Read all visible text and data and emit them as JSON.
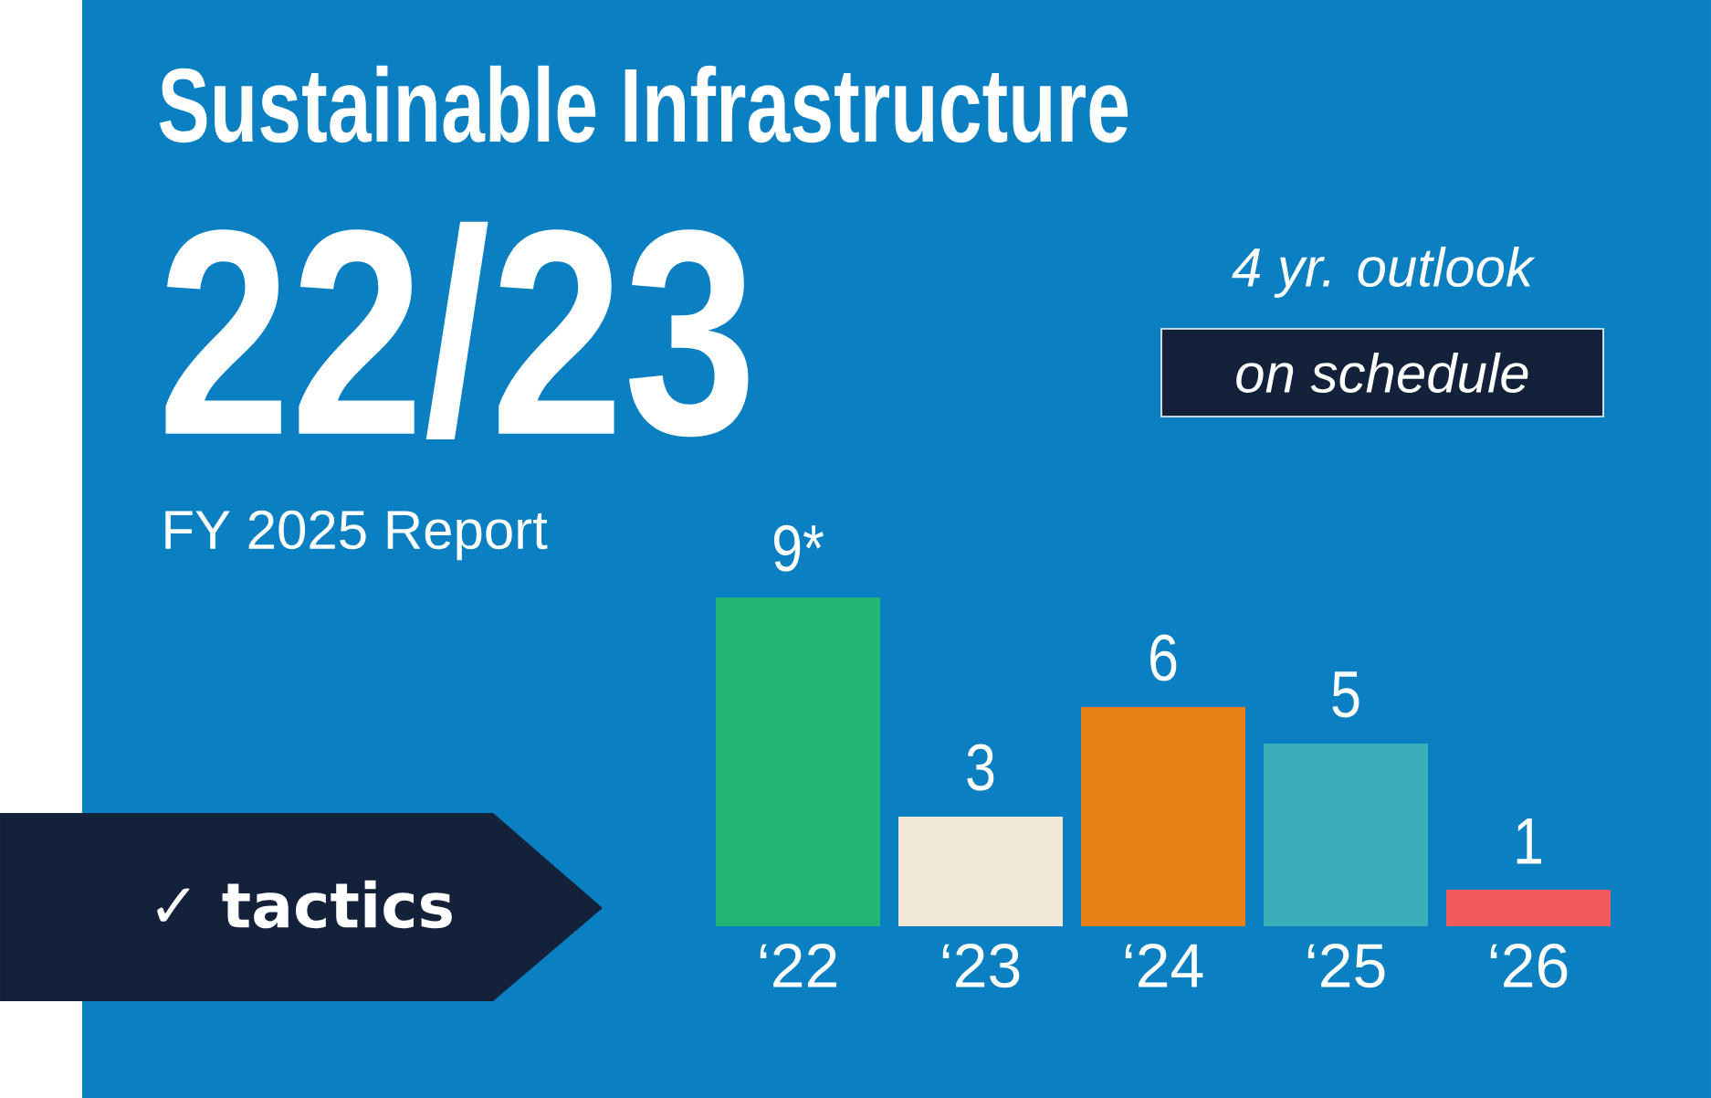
{
  "chart_data": {
    "type": "bar",
    "title": "Sustainable Infrastructure",
    "subtitle": "22/23",
    "categories": [
      "‘22",
      "‘23",
      "‘24",
      "‘25",
      "‘26"
    ],
    "values": [
      9,
      3,
      6,
      5,
      1
    ],
    "value_labels": [
      "9*",
      "3",
      "6",
      "5",
      "1"
    ],
    "colors": [
      "#22b573",
      "#f2e8d8",
      "#e87f14",
      "#3aafb9",
      "#f25a5e"
    ],
    "annotations": [
      "FY 2025 Report",
      "4 yr. outlook",
      "on schedule",
      "✓ tactics"
    ]
  }
}
